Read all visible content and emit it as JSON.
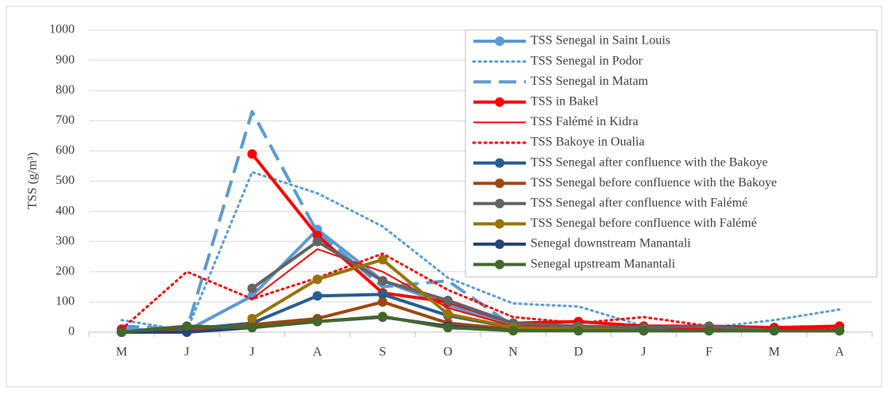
{
  "chart_data": {
    "type": "line",
    "y_label": "TSS (g/m³)",
    "categories": [
      "M",
      "J",
      "J",
      "A",
      "S",
      "O",
      "N",
      "D",
      "J",
      "F",
      "M",
      "A"
    ],
    "ylim": [
      0,
      1000
    ],
    "yticks": [
      0,
      100,
      200,
      300,
      400,
      500,
      600,
      700,
      800,
      900,
      1000
    ],
    "grid": true,
    "legend": "upper right",
    "series": [
      {
        "name": "TSS Senegal in Saint Louis",
        "color": "#5b9bd5",
        "style": "solid",
        "marker": true,
        "width": 4,
        "values": [
          10,
          5,
          120,
          340,
          170,
          90,
          20,
          15,
          10,
          10,
          15,
          15
        ]
      },
      {
        "name": "TSS Senegal in Podor",
        "color": "#5b9bd5",
        "style": "dot",
        "marker": false,
        "width": 3,
        "values": [
          40,
          5,
          530,
          460,
          350,
          180,
          95,
          85,
          20,
          15,
          40,
          75
        ]
      },
      {
        "name": "TSS Senegal in Matam",
        "color": "#5b9bd5",
        "style": "dash",
        "marker": false,
        "width": 4,
        "values": [
          20,
          10,
          730,
          330,
          150,
          170,
          20,
          15,
          10,
          10,
          10,
          10
        ]
      },
      {
        "name": "TSS in Bakel",
        "color": "#ff0000",
        "style": "solid",
        "marker": true,
        "width": 4,
        "values": [
          10,
          null,
          590,
          320,
          130,
          100,
          30,
          35,
          20,
          20,
          15,
          20
        ]
      },
      {
        "name": "TSS Falémé in Kidra",
        "color": "#ff0000",
        "style": "solid",
        "marker": false,
        "width": 2,
        "values": [
          null,
          null,
          110,
          275,
          200,
          80,
          20,
          20,
          15,
          10,
          10,
          10
        ]
      },
      {
        "name": "TSS Bakoye in Oualia",
        "color": "#ff0000",
        "style": "dot",
        "marker": false,
        "width": 3,
        "values": [
          10,
          200,
          110,
          180,
          260,
          140,
          50,
          30,
          50,
          20,
          10,
          10
        ]
      },
      {
        "name": "TSS Senegal after confluence with the Bakoye",
        "color": "#255e91",
        "style": "solid",
        "marker": true,
        "width": 4,
        "values": [
          0,
          10,
          30,
          120,
          125,
          55,
          15,
          10,
          5,
          5,
          5,
          5
        ]
      },
      {
        "name": "TSS Senegal before confluence with the Bakoye",
        "color": "#9e480e",
        "style": "solid",
        "marker": true,
        "width": 4,
        "values": [
          0,
          5,
          25,
          45,
          100,
          30,
          10,
          5,
          5,
          5,
          5,
          5
        ]
      },
      {
        "name": "TSS Senegal after confluence with Falémé",
        "color": "#636363",
        "style": "solid",
        "marker": true,
        "width": 4,
        "values": [
          null,
          null,
          145,
          300,
          170,
          105,
          30,
          20,
          15,
          20,
          5,
          5
        ]
      },
      {
        "name": "TSS Senegal before confluence with Falémé",
        "color": "#997300",
        "style": "solid",
        "marker": true,
        "width": 4,
        "values": [
          null,
          null,
          45,
          175,
          240,
          60,
          15,
          10,
          5,
          5,
          5,
          5
        ]
      },
      {
        "name": "Senegal downstream Manantali",
        "color": "#264478",
        "style": "solid",
        "marker": true,
        "width": 4,
        "values": [
          0,
          0,
          15,
          35,
          50,
          20,
          5,
          5,
          5,
          5,
          5,
          5
        ]
      },
      {
        "name": "Senegal upstream Manantali",
        "color": "#43682b",
        "style": "solid",
        "marker": true,
        "width": 4,
        "values": [
          0,
          20,
          15,
          35,
          52,
          15,
          5,
          5,
          5,
          5,
          5,
          5
        ]
      }
    ]
  }
}
